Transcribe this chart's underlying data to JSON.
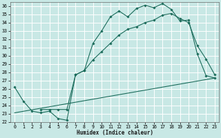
{
  "bg_color": "#c8e8e5",
  "line_color": "#1a6b5a",
  "grid_color": "#ffffff",
  "xlabel": "Humidex (Indice chaleur)",
  "xlim": [
    -0.5,
    23.5
  ],
  "ylim": [
    22,
    36.5
  ],
  "yticks": [
    22,
    23,
    24,
    25,
    26,
    27,
    28,
    29,
    30,
    31,
    32,
    33,
    34,
    35,
    36
  ],
  "xticks": [
    0,
    1,
    2,
    3,
    4,
    5,
    6,
    7,
    8,
    9,
    10,
    11,
    12,
    13,
    14,
    15,
    16,
    17,
    18,
    19,
    20,
    21,
    22,
    23
  ],
  "line1_x": [
    0,
    1,
    2,
    3,
    4,
    5,
    6,
    7,
    8,
    9,
    10,
    11,
    12,
    13,
    14,
    15,
    16,
    17,
    18,
    19,
    20,
    21,
    22,
    23
  ],
  "line1_y": [
    26.2,
    24.5,
    23.3,
    23.1,
    23.3,
    22.4,
    22.2,
    27.7,
    28.2,
    31.5,
    33.0,
    34.7,
    35.4,
    34.7,
    35.7,
    36.1,
    35.8,
    36.3,
    35.6,
    34.2,
    34.3,
    30.2,
    27.6,
    27.3
  ],
  "line2_x": [
    3,
    4,
    5,
    6,
    7,
    8,
    9,
    10,
    11,
    12,
    13,
    14,
    15,
    16,
    17,
    18,
    19,
    20,
    21,
    22,
    23
  ],
  "line2_y": [
    23.5,
    23.5,
    23.5,
    23.5,
    27.7,
    28.2,
    29.5,
    30.5,
    31.5,
    32.5,
    33.2,
    33.5,
    34.0,
    34.3,
    34.9,
    35.1,
    34.5,
    34.0,
    31.2,
    29.6,
    27.7
  ],
  "line3_x": [
    0,
    23
  ],
  "line3_y": [
    23.1,
    27.3
  ],
  "label_fontsize": 5.5,
  "tick_fontsize": 4.8,
  "lw": 0.8,
  "ms": 1.8
}
